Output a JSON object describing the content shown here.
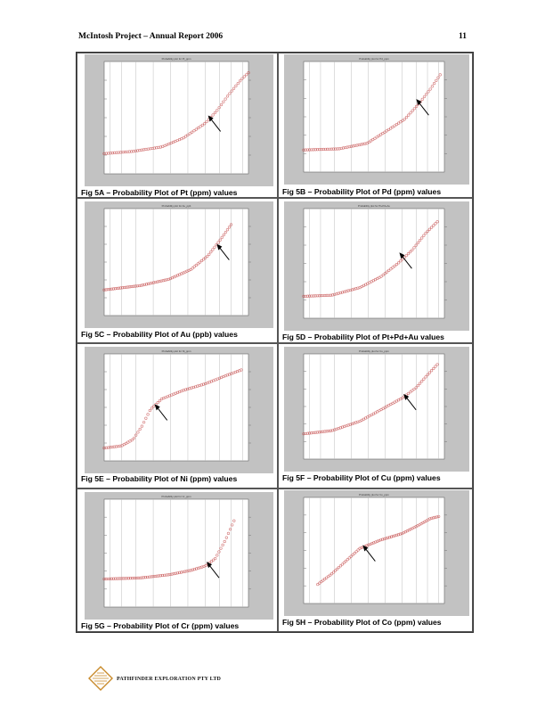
{
  "header": {
    "title": "McIntosh Project – Annual Report 2006",
    "page_number": "11"
  },
  "figures": [
    {
      "id": "5A",
      "caption": "Fig 5A – Probability Plot of Pt (ppm) values",
      "plot_title": "Probability plot for Pt_ppm"
    },
    {
      "id": "5B",
      "caption": "Fig 5B – Probability Plot of Pd (ppm) values",
      "plot_title": "Probability plot for Pd_ppm"
    },
    {
      "id": "5C",
      "caption": "Fig 5C – Probability Plot of Au (ppb) values",
      "plot_title": "Probability plot for Au_ppb"
    },
    {
      "id": "5D",
      "caption": "Fig 5D – Probability Plot of Pt+Pd+Au values",
      "plot_title": "Probability plot for Pt+Pd+Au"
    },
    {
      "id": "5E",
      "caption": "Fig 5E – Probability Plot of Ni (ppm) values",
      "plot_title": "Probability plot for Ni_ppm"
    },
    {
      "id": "5F",
      "caption": "Fig 5F – Probability Plot of Cu (ppm) values",
      "plot_title": "Probability plot for Cu_ppm"
    },
    {
      "id": "5G",
      "caption": "Fig 5G – Probability Plot of Cr (ppm) values",
      "plot_title": "Probability plot for Cr_ppm"
    },
    {
      "id": "5H",
      "caption": "Fig 5H – Probability Plot of Co (ppm) values",
      "plot_title": "Probability plot for Co_ppm"
    }
  ],
  "footer": {
    "company": "PATHFINDER EXPLORATION PTY LTD"
  },
  "colors": {
    "panel_bg": "#c2c2c2",
    "plot_bg": "#ffffff",
    "points": "#c44b4b",
    "arrow": "#000000"
  }
}
